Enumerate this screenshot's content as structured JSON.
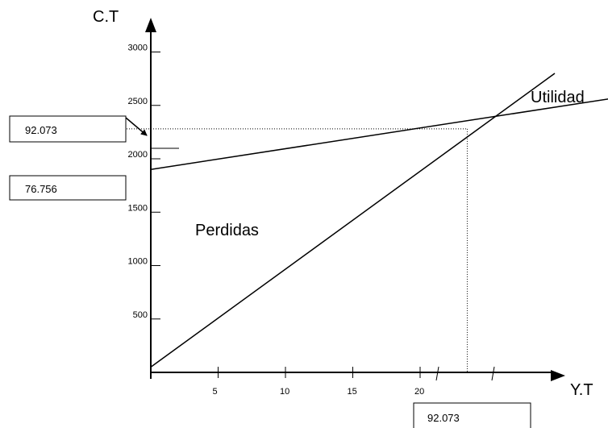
{
  "chart_data": {
    "type": "line",
    "xlabel": "Y.T",
    "ylabel": "C.T",
    "x_ticks": [
      5,
      10,
      15,
      20
    ],
    "y_ticks": [
      500,
      1000,
      1500,
      2000,
      2500,
      3000
    ],
    "xlim": [
      0,
      30
    ],
    "ylim": [
      0,
      3200
    ],
    "grid": false,
    "series": [
      {
        "points": [
          [
            0,
            50
          ],
          [
            30,
            2800
          ]
        ]
      },
      {
        "points": [
          [
            0,
            1900
          ],
          [
            35,
            2580
          ]
        ]
      }
    ],
    "breakeven": {
      "x": 23.5,
      "y": 2280
    },
    "annotations": {
      "region_upper": "Utilidad",
      "region_lower": "Perdidas",
      "box_upper": "92.073",
      "box_middle": "76.756",
      "box_bottom": "92.073"
    }
  }
}
